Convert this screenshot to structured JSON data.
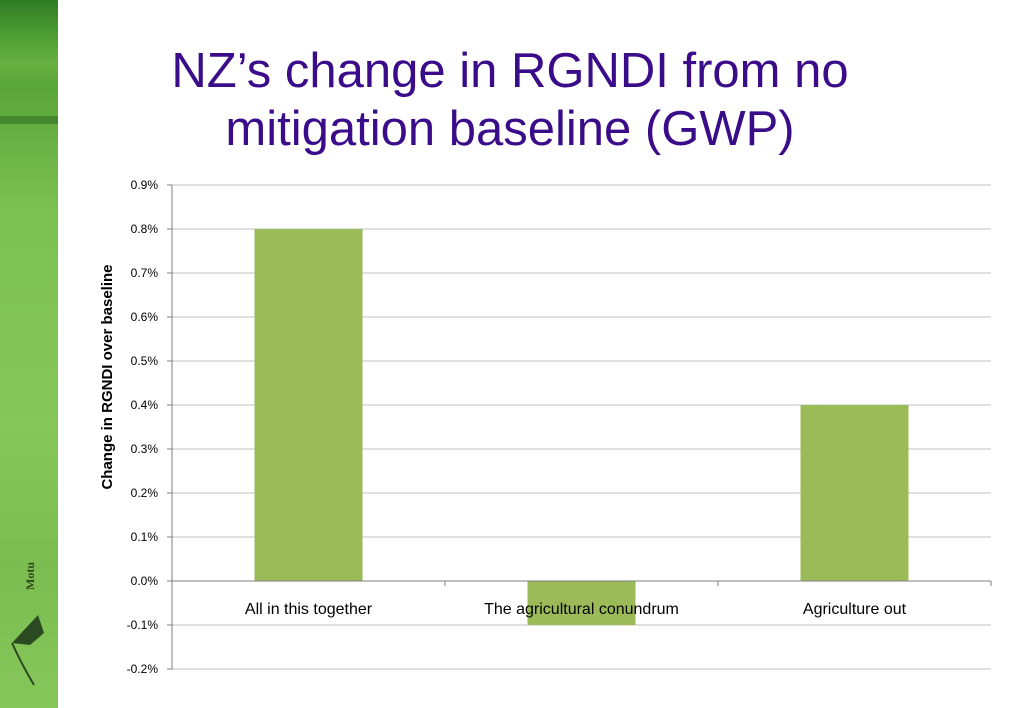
{
  "title": "NZ’s change in RGNDI from no mitigation baseline (GWP)",
  "logo_text": "Motu",
  "colors": {
    "bar": "#9bbb59",
    "title": "#3a0c8a",
    "grid": "#c0c0c0",
    "axis": "#7f7f7f",
    "side_band": "#7cc052"
  },
  "chart_data": {
    "type": "bar",
    "categories": [
      "All in this together",
      "The agricultural conundrum",
      "Agriculture out"
    ],
    "values": [
      0.008,
      -0.001,
      0.004
    ],
    "ylabel": "Change in RGNDI over baseline",
    "xlabel": "",
    "ylim": [
      -0.002,
      0.009
    ],
    "yticks": [
      0.009,
      0.008,
      0.007,
      0.006,
      0.005,
      0.004,
      0.003,
      0.002,
      0.001,
      0.0,
      -0.001,
      -0.002
    ],
    "ytick_labels": [
      "0.9%",
      "0.8%",
      "0.7%",
      "0.6%",
      "0.5%",
      "0.4%",
      "0.3%",
      "0.2%",
      "0.1%",
      "0.0%",
      "-0.1%",
      "-0.2%"
    ],
    "grid": true,
    "legend": "none"
  }
}
